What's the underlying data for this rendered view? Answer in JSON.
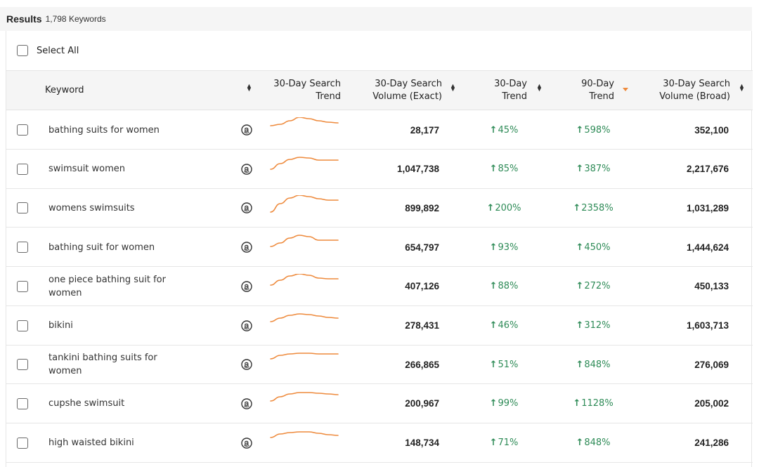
{
  "results": {
    "title": "Results",
    "count": "1,798 Keywords"
  },
  "select_all": {
    "label": "Select All"
  },
  "columns": {
    "keyword": "Keyword",
    "trend_30_line1": "30-Day Search",
    "trend_30_line2": "Trend",
    "vol_exact_line1": "30-Day Search",
    "vol_exact_line2": "Volume (Exact)",
    "t30_line1": "30-Day",
    "t30_line2": "Trend",
    "t90_line1": "90-Day",
    "t90_line2": "Trend",
    "vol_broad_line1": "30-Day Search",
    "vol_broad_line2": "Volume (Broad)"
  },
  "colors": {
    "trend_up": "#2e8b57",
    "sparkline": "#ee8a3c",
    "sort_active": "#ee8a3c"
  },
  "icons": {
    "row_icon": "amazon-icon",
    "trend_arrow": "arrow-up-icon"
  },
  "rows": [
    {
      "keyword": "bathing suits for women",
      "volume_exact": "28,177",
      "trend_30": "45%",
      "trend_90": "598%",
      "volume_broad": "352,100",
      "spark": [
        20,
        22,
        27,
        32,
        30,
        27,
        25,
        24
      ]
    },
    {
      "keyword": "swimsuit women",
      "volume_exact": "1,047,738",
      "trend_30": "85%",
      "trend_90": "387%",
      "volume_broad": "2,217,676",
      "spark": [
        14,
        22,
        28,
        31,
        30,
        27,
        27,
        27
      ]
    },
    {
      "keyword": "womens swimsuits",
      "volume_exact": "899,892",
      "trend_30": "200%",
      "trend_90": "2358%",
      "volume_broad": "1,031,289",
      "spark": [
        8,
        20,
        28,
        32,
        30,
        27,
        25,
        25
      ]
    },
    {
      "keyword": "bathing suit for women",
      "volume_exact": "654,797",
      "trend_30": "93%",
      "trend_90": "450%",
      "volume_broad": "1,444,624",
      "spark": [
        15,
        20,
        27,
        31,
        29,
        24,
        24,
        24
      ]
    },
    {
      "keyword": "one piece bathing suit for women",
      "volume_exact": "407,126",
      "trend_30": "88%",
      "trend_90": "272%",
      "volume_broad": "450,133",
      "spark": [
        16,
        23,
        29,
        32,
        30,
        26,
        25,
        25
      ]
    },
    {
      "keyword": "bikini",
      "volume_exact": "278,431",
      "trend_30": "46%",
      "trend_90": "312%",
      "volume_broad": "1,603,713",
      "spark": [
        20,
        25,
        29,
        31,
        30,
        28,
        26,
        25
      ]
    },
    {
      "keyword": "tankini bathing suits for women",
      "volume_exact": "266,865",
      "trend_30": "51%",
      "trend_90": "848%",
      "volume_broad": "276,069",
      "spark": [
        22,
        27,
        29,
        30,
        30,
        29,
        29,
        29
      ]
    },
    {
      "keyword": "cupshe swimsuit",
      "volume_exact": "200,967",
      "trend_30": "99%",
      "trend_90": "1128%",
      "volume_broad": "205,002",
      "spark": [
        18,
        24,
        28,
        30,
        30,
        29,
        28,
        27
      ]
    },
    {
      "keyword": "high waisted bikini",
      "volume_exact": "148,734",
      "trend_30": "71%",
      "trend_90": "848%",
      "volume_broad": "241,286",
      "spark": [
        22,
        27,
        29,
        30,
        30,
        28,
        26,
        25
      ]
    }
  ]
}
